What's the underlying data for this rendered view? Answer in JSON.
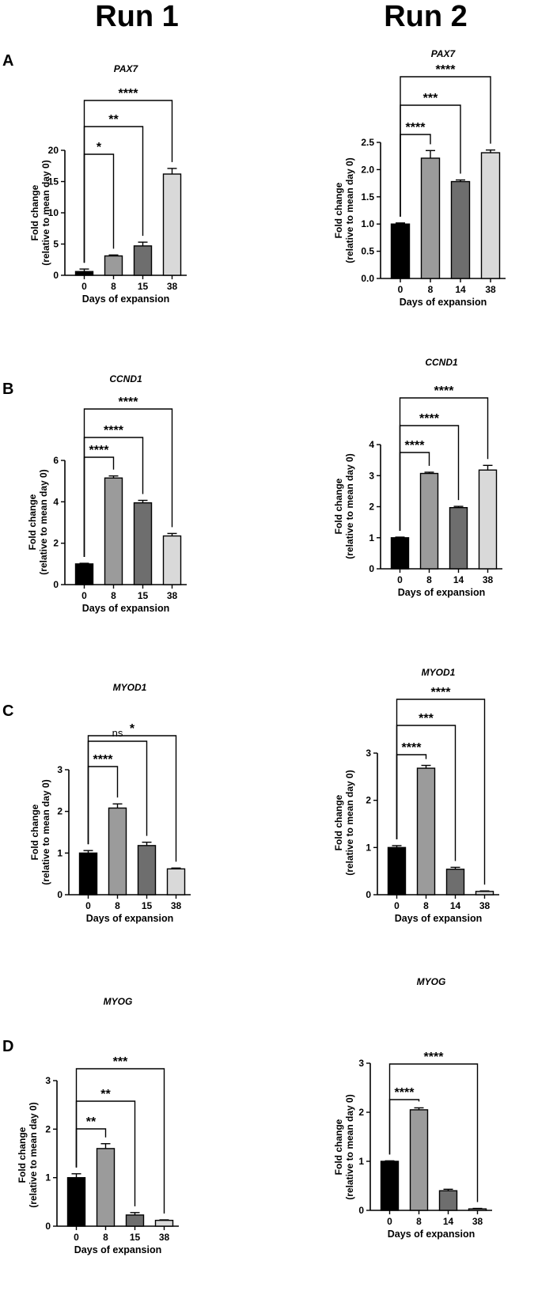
{
  "run_titles": [
    "Run 1",
    "Run 2"
  ],
  "panel_letters": [
    "A",
    "B",
    "C",
    "D"
  ],
  "chart_data": [
    {
      "type": "bar",
      "panel": "A",
      "run": "Run 1",
      "title": "PAX7",
      "xlabel": "Days of expansion",
      "ylabel": [
        "Fold change",
        "(relative to mean day 0)"
      ],
      "categories": [
        "0",
        "8",
        "15",
        "38"
      ],
      "values": [
        0.6,
        3.1,
        4.7,
        16.2
      ],
      "errors": [
        0.4,
        0.15,
        0.6,
        0.9
      ],
      "ylim": [
        0,
        20
      ],
      "yticks": [
        0,
        5,
        10,
        15,
        20
      ],
      "ytick_labels": [
        "0",
        "5",
        "10",
        "15",
        "20"
      ],
      "bar_colors": [
        "#000000",
        "#9b9b9b",
        "#6e6e6e",
        "#d9d9d9"
      ],
      "comparisons": [
        {
          "to": 1,
          "label": "*"
        },
        {
          "to": 2,
          "label": "**"
        },
        {
          "to": 3,
          "label": "****"
        }
      ]
    },
    {
      "type": "bar",
      "panel": "A",
      "run": "Run 2",
      "title": "PAX7",
      "xlabel": "Days of expansion",
      "ylabel": [
        "Fold change",
        "(relative to mean day 0)"
      ],
      "categories": [
        "0",
        "8",
        "14",
        "38"
      ],
      "values": [
        1.0,
        2.21,
        1.78,
        2.31
      ],
      "errors": [
        0.02,
        0.14,
        0.03,
        0.05
      ],
      "ylim": [
        0,
        2.5
      ],
      "yticks": [
        0,
        0.5,
        1,
        1.5,
        2,
        2.5
      ],
      "ytick_labels": [
        "0.0",
        "0.5",
        "1.0",
        "1.5",
        "2.0",
        "2.5"
      ],
      "bar_colors": [
        "#000000",
        "#9b9b9b",
        "#6e6e6e",
        "#d9d9d9"
      ],
      "comparisons": [
        {
          "to": 1,
          "label": "****"
        },
        {
          "to": 2,
          "label": "***"
        },
        {
          "to": 3,
          "label": "****"
        }
      ]
    },
    {
      "type": "bar",
      "panel": "B",
      "run": "Run 1",
      "title": "CCND1",
      "xlabel": "Days of expansion",
      "ylabel": [
        "Fold change",
        "(relative to mean day 0)"
      ],
      "categories": [
        "0",
        "8",
        "15",
        "38"
      ],
      "values": [
        1.0,
        5.15,
        3.95,
        2.35
      ],
      "errors": [
        0.03,
        0.1,
        0.12,
        0.12
      ],
      "ylim": [
        0,
        6
      ],
      "yticks": [
        0,
        2,
        4,
        6
      ],
      "ytick_labels": [
        "0",
        "2",
        "4",
        "6"
      ],
      "bar_colors": [
        "#000000",
        "#9b9b9b",
        "#6e6e6e",
        "#d9d9d9"
      ],
      "comparisons": [
        {
          "to": 1,
          "label": "****"
        },
        {
          "to": 2,
          "label": "****"
        },
        {
          "to": 3,
          "label": "****"
        }
      ]
    },
    {
      "type": "bar",
      "panel": "B",
      "run": "Run 2",
      "title": "CCND1",
      "xlabel": "Days of expansion",
      "ylabel": [
        "Fold change",
        "(relative to mean day 0)"
      ],
      "categories": [
        "0",
        "8",
        "14",
        "38"
      ],
      "values": [
        1.0,
        3.07,
        1.97,
        3.18
      ],
      "errors": [
        0.02,
        0.04,
        0.04,
        0.15
      ],
      "ylim": [
        0,
        4
      ],
      "yticks": [
        0,
        1,
        2,
        3,
        4
      ],
      "ytick_labels": [
        "0",
        "1",
        "2",
        "3",
        "4"
      ],
      "bar_colors": [
        "#000000",
        "#9b9b9b",
        "#6e6e6e",
        "#d9d9d9"
      ],
      "comparisons": [
        {
          "to": 1,
          "label": "****"
        },
        {
          "to": 2,
          "label": "****"
        },
        {
          "to": 3,
          "label": "****"
        }
      ]
    },
    {
      "type": "bar",
      "panel": "C",
      "run": "Run 1",
      "title": "MYOD1",
      "xlabel": "Days of expansion",
      "ylabel": [
        "Fold change",
        "(relative to mean day 0)"
      ],
      "categories": [
        "0",
        "8",
        "15",
        "38"
      ],
      "values": [
        1.0,
        2.08,
        1.18,
        0.62
      ],
      "errors": [
        0.06,
        0.1,
        0.08,
        0.02
      ],
      "ylim": [
        0,
        3
      ],
      "yticks": [
        0,
        1,
        2,
        3
      ],
      "ytick_labels": [
        "0",
        "1",
        "2",
        "3"
      ],
      "bar_colors": [
        "#000000",
        "#9b9b9b",
        "#6e6e6e",
        "#d9d9d9"
      ],
      "comparisons": [
        {
          "to": 1,
          "label": "****"
        },
        {
          "to": 2,
          "label": "ns"
        },
        {
          "to": 3,
          "label": "*"
        }
      ]
    },
    {
      "type": "bar",
      "panel": "C",
      "run": "Run 2",
      "title": "MYOD1",
      "xlabel": "Days of expansion",
      "ylabel": [
        "Fold change",
        "(relative to mean day 0)"
      ],
      "categories": [
        "0",
        "8",
        "14",
        "38"
      ],
      "values": [
        1.0,
        2.68,
        0.54,
        0.07
      ],
      "errors": [
        0.04,
        0.06,
        0.04,
        0.01
      ],
      "ylim": [
        0,
        3
      ],
      "yticks": [
        0,
        1,
        2,
        3
      ],
      "ytick_labels": [
        "0",
        "1",
        "2",
        "3"
      ],
      "bar_colors": [
        "#000000",
        "#9b9b9b",
        "#6e6e6e",
        "#d9d9d9"
      ],
      "comparisons": [
        {
          "to": 1,
          "label": "****"
        },
        {
          "to": 2,
          "label": "***"
        },
        {
          "to": 3,
          "label": "****"
        }
      ]
    },
    {
      "type": "bar",
      "panel": "D",
      "run": "Run 1",
      "title": "MYOG",
      "xlabel": "Days of expansion",
      "ylabel": [
        "Fold change",
        "(relative to mean day 0)"
      ],
      "categories": [
        "0",
        "8",
        "15",
        "38"
      ],
      "values": [
        1.0,
        1.6,
        0.23,
        0.12
      ],
      "errors": [
        0.08,
        0.1,
        0.05,
        0.01
      ],
      "ylim": [
        0,
        3
      ],
      "yticks": [
        0,
        1,
        2,
        3
      ],
      "ytick_labels": [
        "0",
        "1",
        "2",
        "3"
      ],
      "bar_colors": [
        "#000000",
        "#9b9b9b",
        "#6e6e6e",
        "#d9d9d9"
      ],
      "comparisons": [
        {
          "to": 1,
          "label": "**"
        },
        {
          "to": 2,
          "label": "**"
        },
        {
          "to": 3,
          "label": "***"
        }
      ]
    },
    {
      "type": "bar",
      "panel": "D",
      "run": "Run 2",
      "title": "MYOG",
      "xlabel": "Days of expansion",
      "ylabel": [
        "Fold change",
        "(relative to mean day 0)"
      ],
      "categories": [
        "0",
        "8",
        "14",
        "38"
      ],
      "values": [
        1.0,
        2.05,
        0.4,
        0.03
      ],
      "errors": [
        0.01,
        0.04,
        0.03,
        0.01
      ],
      "ylim": [
        0,
        3
      ],
      "yticks": [
        0,
        1,
        2,
        3
      ],
      "ytick_labels": [
        "0",
        "1",
        "2",
        "3"
      ],
      "bar_colors": [
        "#000000",
        "#9b9b9b",
        "#6e6e6e",
        "#d9d9d9"
      ],
      "comparisons": [
        {
          "to": 1,
          "label": "****"
        },
        {
          "to": 3,
          "label": "****"
        }
      ]
    }
  ]
}
